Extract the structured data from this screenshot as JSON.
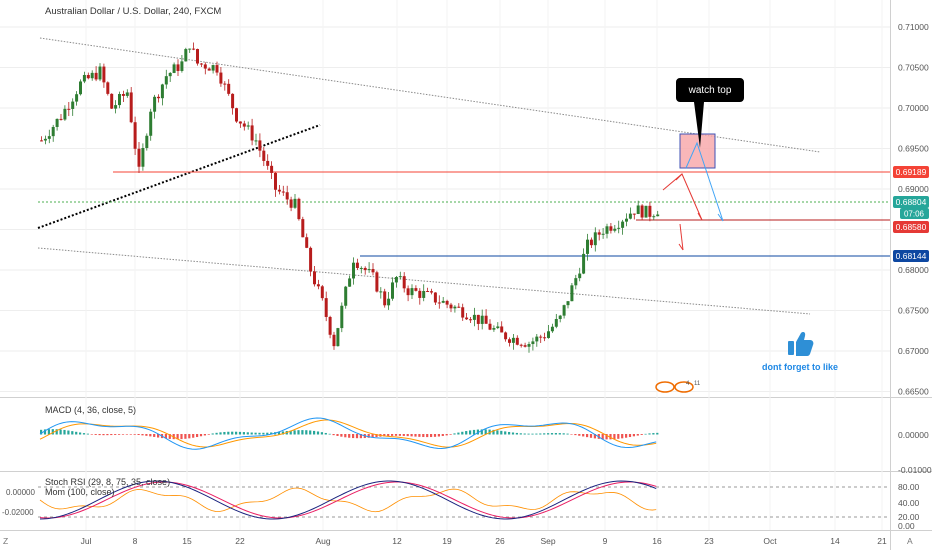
{
  "header": {
    "title": "Australian Dollar / U.S. Dollar, 240, FXCM"
  },
  "colors": {
    "up": "#26a69a",
    "down": "#ef5350",
    "candle_up": "#2e7d32",
    "candle_down": "#b71c1c",
    "macd_line": "#2196f3",
    "signal_line": "#ff9800",
    "stoch_k": "#1a237e",
    "stoch_d": "#e91e63",
    "mom": "#ff8f00",
    "red_level": "#f44336",
    "blue_level": "#0d47a1",
    "green_level": "#4caf50",
    "axis_text": "#555555",
    "grid": "#eeeeee"
  },
  "chart_data": [
    {
      "type": "candlestick",
      "title": "Australian Dollar / U.S. Dollar, 240, FXCM",
      "x_ticks": [
        "Jul",
        "8",
        "15",
        "22",
        "Aug",
        "12",
        "19",
        "26",
        "Sep",
        "9",
        "16",
        "23",
        "Oct",
        "14",
        "21"
      ],
      "y_ticks": [
        "0.71000",
        "0.70500",
        "0.70000",
        "0.69500",
        "0.69000",
        "0.68500",
        "0.68000",
        "0.67500",
        "0.67000",
        "0.66500"
      ],
      "ylim": [
        0.6635,
        0.7135
      ],
      "path_x": [
        0,
        5,
        10,
        15,
        18,
        22,
        25,
        28,
        32,
        36,
        38,
        40,
        45,
        50,
        55,
        60,
        65,
        69,
        72,
        75,
        80,
        85,
        88,
        91,
        94,
        98,
        103,
        110,
        118,
        125
      ],
      "path_y": [
        0.696,
        0.699,
        0.703,
        0.7045,
        0.7,
        0.702,
        0.692,
        0.7,
        0.704,
        0.7055,
        0.708,
        0.7055,
        0.705,
        0.699,
        0.696,
        0.69,
        0.688,
        0.68,
        0.676,
        0.671,
        0.6815,
        0.679,
        0.676,
        0.679,
        0.6775,
        0.677,
        0.676,
        0.6745,
        0.672,
        0.671
      ],
      "path_x2": [
        125,
        129,
        133,
        137,
        140,
        144,
        148,
        152,
        156,
        160,
        165
      ],
      "path_y2": [
        0.671,
        0.672,
        0.674,
        0.679,
        0.683,
        0.685,
        0.686,
        0.6875,
        0.687,
        0.688,
        0.6882
      ],
      "price_labels": [
        {
          "value": 0.69189,
          "text": "0.69189",
          "color": "red"
        },
        {
          "value": 0.68804,
          "text": "0.68804",
          "color": "green"
        },
        {
          "value": 0.6858,
          "text": "0.68580",
          "color": "red"
        },
        {
          "value": 0.68144,
          "text": "0.68144",
          "color": "blue"
        }
      ],
      "countdown": "07:06"
    },
    {
      "type": "line",
      "title": "MACD (4, 36, close, 5)",
      "y_ticks": [
        "0.00000",
        "-0.01000"
      ]
    },
    {
      "type": "line",
      "title": "Stoch RSI (29, 8, 75, 35, close)",
      "subtitle": "Mom (100, close)",
      "y_ticks_left": [
        "0.00000",
        "-0.02000"
      ],
      "y_ticks_right": [
        "80.00",
        "40.00",
        "20.00",
        "0.00"
      ]
    }
  ],
  "annotations": {
    "callout": "watch top",
    "like": "dont forget to like",
    "badge_num1": "4",
    "badge_num2": "11"
  },
  "footer": {
    "left_marker": "Z",
    "right_marker": "A"
  }
}
